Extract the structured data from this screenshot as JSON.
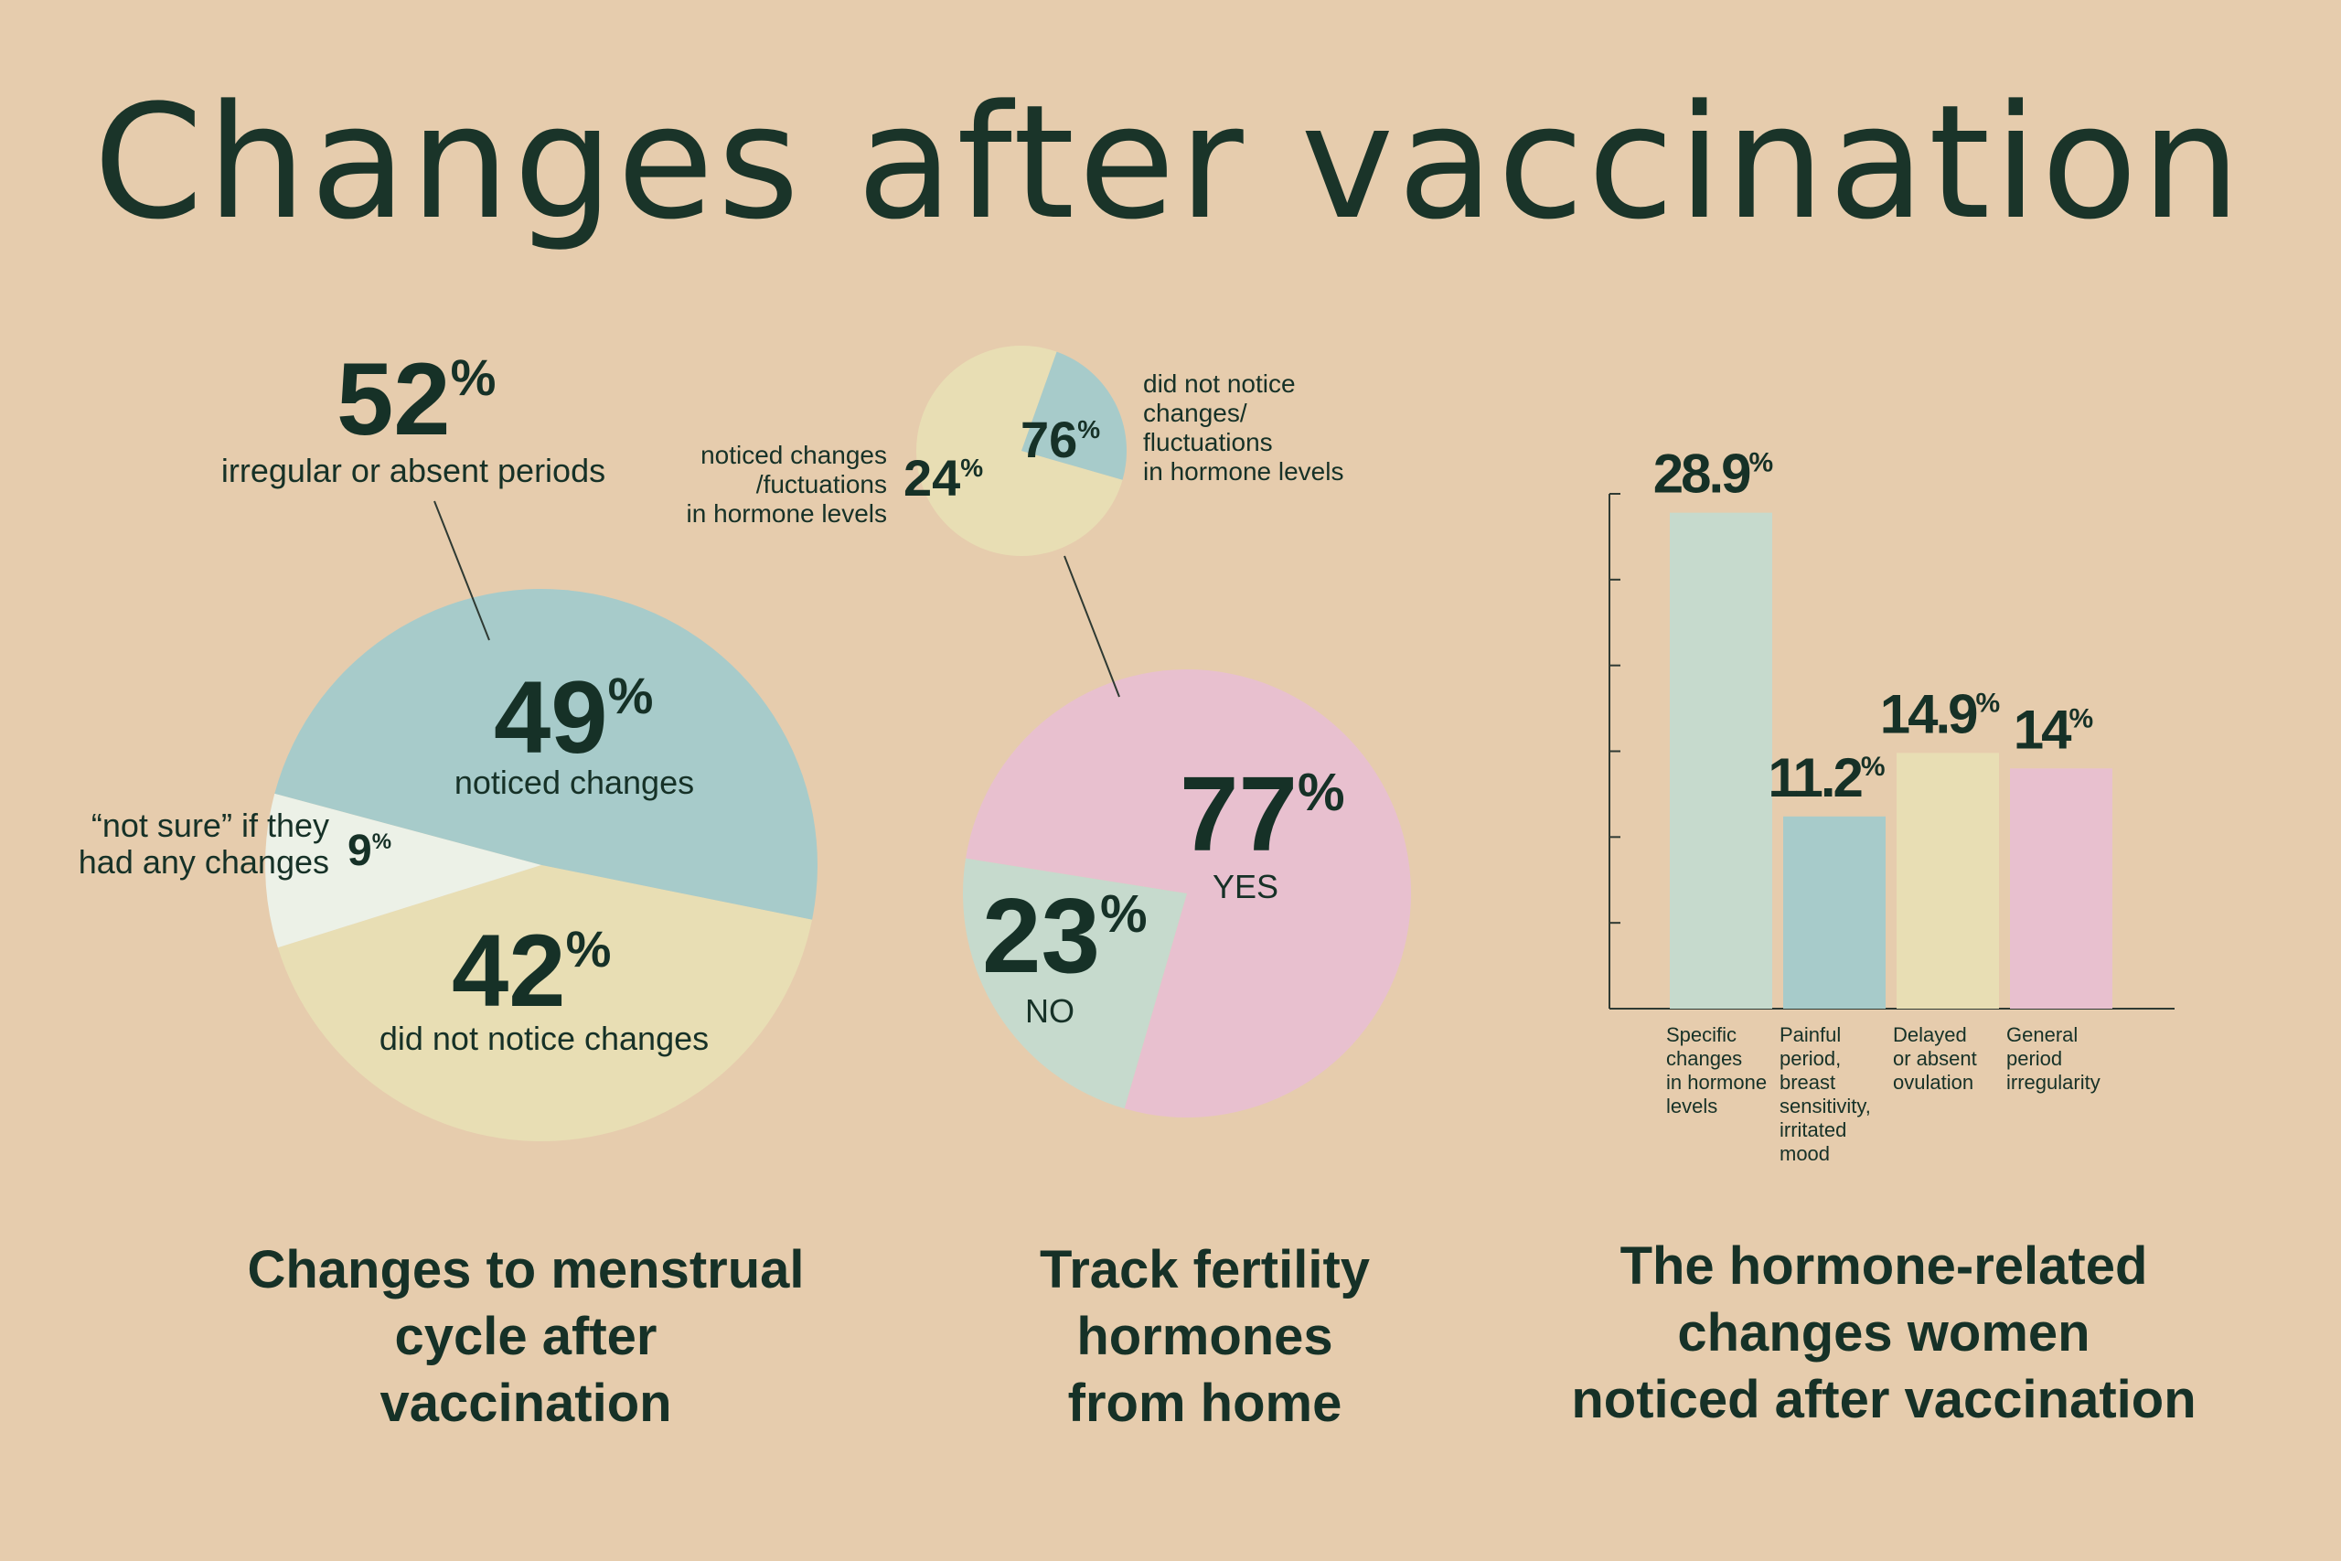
{
  "title": "Changes after vaccination",
  "colors": {
    "background": "#e6ccad",
    "text": "#163127",
    "teal": "#a7cbca",
    "cream": "#e8deb4",
    "offwhite": "#ecf1e7",
    "mint": "#c6dacd",
    "pink": "#e8c0cf",
    "axis": "#2f3a33"
  },
  "chart_data": [
    {
      "type": "pie",
      "caption_lines": [
        "Changes to menstrual",
        "cycle after",
        "vaccination"
      ],
      "slices": [
        {
          "value": 49,
          "label": "noticed changes",
          "color": "#a7cbca"
        },
        {
          "value": 42,
          "label": "did not notice changes",
          "color": "#e8deb4"
        },
        {
          "value": 9,
          "label_lines": [
            "“not sure” if they",
            "had any changes"
          ],
          "color": "#ecf1e7"
        }
      ],
      "callout": {
        "value": 52,
        "label": "irregular or absent periods"
      }
    },
    {
      "type": "pie",
      "caption_lines": [
        "Track fertility",
        "hormones",
        "from home"
      ],
      "slices": [
        {
          "value": 77,
          "label": "YES",
          "color": "#e8c0cf"
        },
        {
          "value": 23,
          "label": "NO",
          "color": "#c6dacd"
        }
      ],
      "inset": {
        "type": "pie",
        "slices": [
          {
            "value": 76,
            "label_lines": [
              "did not notice",
              "changes/",
              "fluctuations",
              "in hormone levels"
            ],
            "color": "#e8deb4"
          },
          {
            "value": 24,
            "label_lines": [
              "noticed changes",
              "/fuctuations",
              "in hormone levels"
            ],
            "color": "#a7cbca"
          }
        ]
      }
    },
    {
      "type": "bar",
      "caption_lines": [
        "The hormone-related",
        "changes women",
        "noticed after vaccination"
      ],
      "categories": [
        [
          "Specific",
          "changes",
          "in hormone",
          "levels"
        ],
        [
          "Painful",
          "period,",
          "breast",
          "sensitivity,",
          "irritated",
          "mood"
        ],
        [
          "Delayed",
          "or absent",
          "ovulation"
        ],
        [
          "General",
          "period",
          "irregularity"
        ]
      ],
      "values": [
        28.9,
        11.2,
        14.9,
        14
      ],
      "value_labels": [
        "28.9",
        "11.2",
        "14.9",
        "14"
      ],
      "colors": [
        "#c6dacd",
        "#a7cbca",
        "#e8deb4",
        "#e8c0cf"
      ],
      "ylim": [
        0,
        30
      ],
      "unit": "%"
    }
  ]
}
